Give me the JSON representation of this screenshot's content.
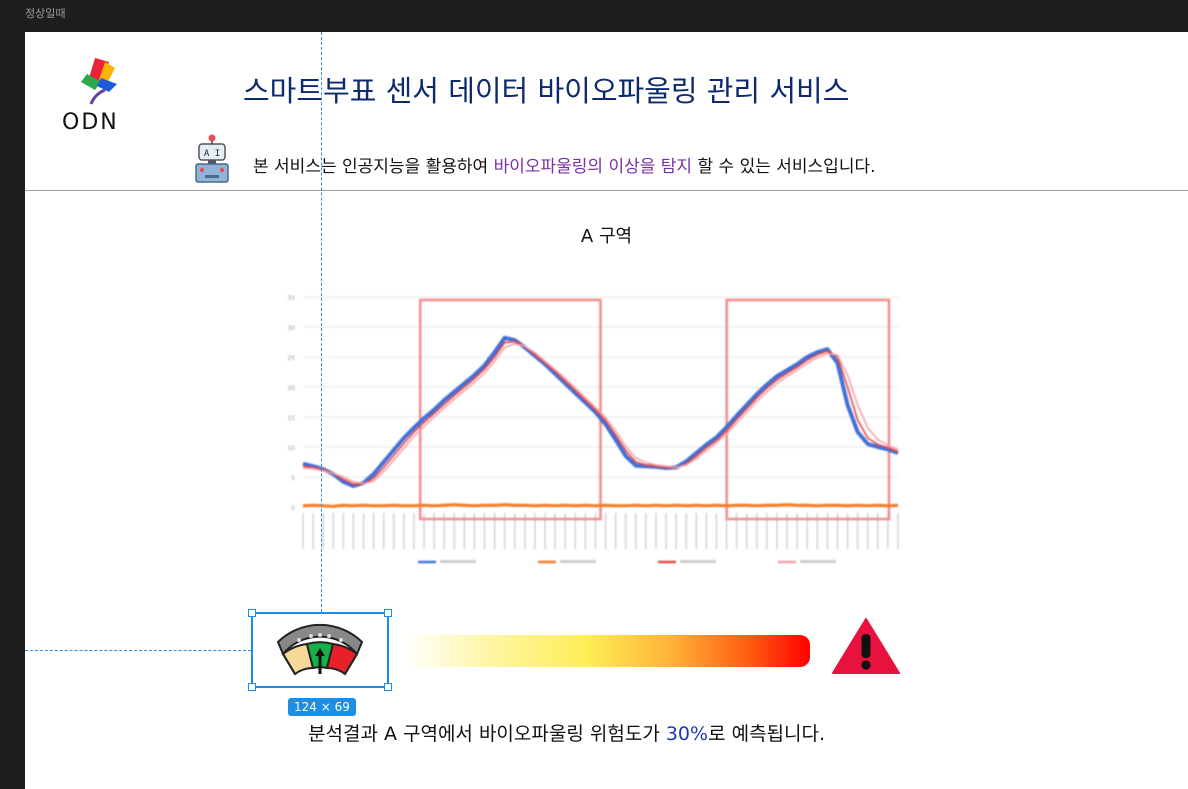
{
  "frame": {
    "label": "정상일때"
  },
  "header": {
    "logo_text": "ODN",
    "title": "스마트부표 센서 데이터 바이오파울링 관리 서비스",
    "subtitle_pre": "본 서비스는 인공지능을 활용하여 ",
    "subtitle_highlight": "바이오파울링의 이상을 탐지",
    "subtitle_post": " 할 수 있는 서비스입니다.",
    "robot_label": "A I"
  },
  "section": {
    "title": "A 구역"
  },
  "selection": {
    "size_label": "124 × 69"
  },
  "gauge": {
    "level": 0.5
  },
  "risk_bar": {
    "level": 1.0
  },
  "result": {
    "pre": "분석결과 A 구역에서 바이오파울링 위험도가 ",
    "percent": "30%",
    "post": "로 예측됩니다."
  },
  "colors": {
    "title": "#0e2a6e",
    "highlight": "#7a2fa8",
    "percent": "#1e3aa8",
    "selection": "#1b8fe8",
    "warning": "#e8123e"
  },
  "chart_data": {
    "type": "line",
    "title": "",
    "xlabel": "",
    "ylabel": "",
    "ylim": [
      0,
      35
    ],
    "yticks": [
      0,
      5,
      10,
      15,
      20,
      25,
      30,
      35
    ],
    "x_count": 60,
    "series": [
      {
        "color": "#3f6fd6",
        "values": [
          7.2,
          6.8,
          6.3,
          5.5,
          4.2,
          3.5,
          4.0,
          5.5,
          7.5,
          9.5,
          11.5,
          13.2,
          14.8,
          16.2,
          17.8,
          19.2,
          20.6,
          22.0,
          23.6,
          25.8,
          28.2,
          27.8,
          26.6,
          25.2,
          23.8,
          22.2,
          20.6,
          19.0,
          17.4,
          15.8,
          13.8,
          11.2,
          8.5,
          6.9,
          6.8,
          6.7,
          6.5,
          6.6,
          7.6,
          9.0,
          10.4,
          11.6,
          13.3,
          15.2,
          17.0,
          18.8,
          20.4,
          21.8,
          22.8,
          23.8,
          25.0,
          25.8,
          26.3,
          24.0,
          17.0,
          12.5,
          10.5,
          10.0,
          9.6,
          9.0
        ]
      },
      {
        "color": "#f47a20",
        "values": [
          0.2,
          0.3,
          0.2,
          0.1,
          0.3,
          0.2,
          0.3,
          0.2,
          0.2,
          0.3,
          0.2,
          0.2,
          0.3,
          0.2,
          0.3,
          0.4,
          0.3,
          0.2,
          0.3,
          0.3,
          0.4,
          0.3,
          0.3,
          0.2,
          0.3,
          0.2,
          0.3,
          0.2,
          0.3,
          0.2,
          0.3,
          0.2,
          0.2,
          0.3,
          0.2,
          0.3,
          0.2,
          0.3,
          0.2,
          0.3,
          0.2,
          0.3,
          0.2,
          0.3,
          0.3,
          0.2,
          0.3,
          0.3,
          0.4,
          0.3,
          0.3,
          0.2,
          0.3,
          0.3,
          0.2,
          0.3,
          0.2,
          0.3,
          0.2,
          0.3
        ]
      },
      {
        "color": "#e84545",
        "values": [
          6.8,
          6.6,
          6.2,
          5.6,
          4.6,
          3.8,
          3.8,
          4.8,
          6.6,
          8.6,
          10.6,
          12.5,
          14.1,
          15.6,
          17.1,
          18.6,
          20.0,
          21.4,
          23.0,
          25.0,
          27.4,
          27.6,
          26.8,
          25.4,
          24.0,
          22.6,
          21.0,
          19.4,
          17.8,
          16.2,
          14.4,
          12.0,
          9.4,
          7.5,
          7.0,
          6.8,
          6.6,
          6.5,
          7.2,
          8.5,
          9.9,
          11.1,
          12.7,
          14.6,
          16.4,
          18.2,
          19.8,
          21.2,
          22.3,
          23.3,
          24.5,
          25.4,
          26.0,
          25.0,
          20.0,
          14.5,
          11.5,
          10.4,
          9.9,
          9.2
        ]
      },
      {
        "color": "#f4a0a8",
        "values": [
          6.5,
          6.4,
          6.0,
          5.6,
          5.0,
          4.2,
          3.9,
          4.3,
          5.9,
          7.8,
          9.8,
          11.8,
          13.4,
          15.0,
          16.5,
          18.0,
          19.4,
          20.8,
          22.3,
          24.3,
          26.6,
          27.2,
          26.8,
          25.7,
          24.3,
          22.9,
          21.4,
          19.8,
          18.2,
          16.6,
          14.9,
          12.7,
          10.1,
          8.2,
          7.4,
          7.0,
          6.8,
          6.6,
          7.0,
          8.1,
          9.4,
          10.7,
          12.2,
          14.0,
          15.8,
          17.6,
          19.2,
          20.6,
          21.8,
          22.8,
          24.0,
          24.9,
          25.6,
          25.3,
          22.0,
          17.0,
          13.2,
          11.2,
          10.3,
          9.5
        ]
      }
    ],
    "highlight_ranges": [
      [
        13,
        33
      ],
      [
        47,
        65
      ]
    ]
  }
}
